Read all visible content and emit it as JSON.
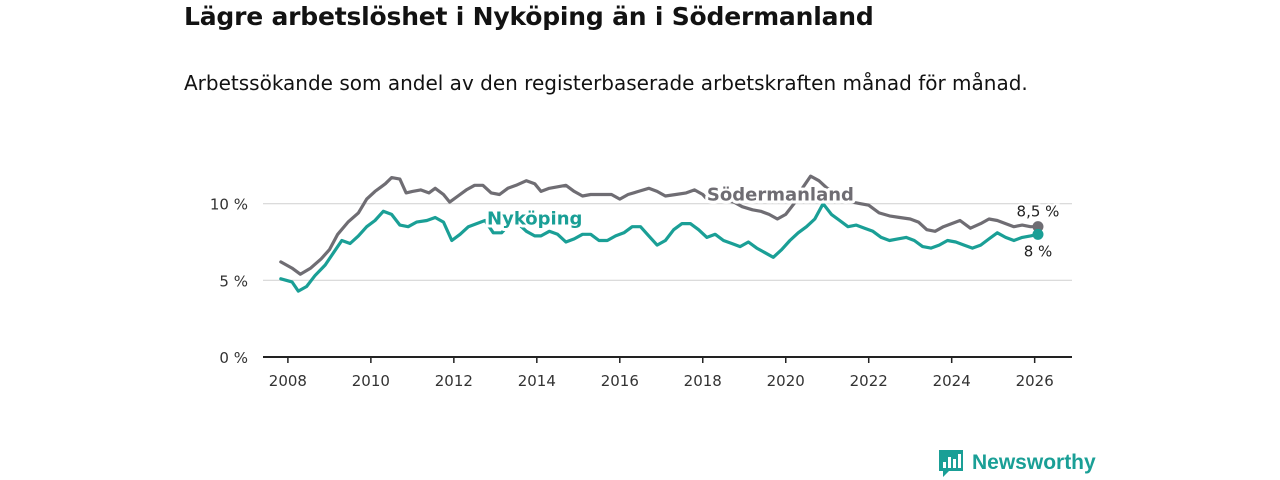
{
  "title": "Lägre arbetslöshet i Nyköping än i Södermanland",
  "subtitle": "Arbetssökande som andel av den registerbaserade arbetskraften månad för månad.",
  "brand": {
    "name": "Newsworthy",
    "icon": "bar-chart-speech-bubble-icon",
    "color": "#1a9f96"
  },
  "chart_data": {
    "type": "line",
    "x_range": [
      2007.4,
      2026.9
    ],
    "ylim": [
      0,
      13.5
    ],
    "x_ticks": [
      2008,
      2010,
      2012,
      2014,
      2016,
      2018,
      2020,
      2022,
      2024,
      2026
    ],
    "x_tick_labels": [
      "2008",
      "2010",
      "2012",
      "2014",
      "2016",
      "2018",
      "2020",
      "2022",
      "2024",
      "2026"
    ],
    "y_ticks": [
      0,
      5,
      10
    ],
    "y_tick_labels": [
      "0 %",
      "5 %",
      "10 %"
    ],
    "grid": true,
    "series": [
      {
        "name": "Södermanland",
        "color": "#6f6d73",
        "label_at": [
          2018.1,
          10.2
        ],
        "end_label": "8,5 %",
        "points": [
          [
            2007.83,
            6.2
          ],
          [
            2008.1,
            5.8
          ],
          [
            2008.3,
            5.4
          ],
          [
            2008.55,
            5.8
          ],
          [
            2008.8,
            6.4
          ],
          [
            2009.0,
            7.0
          ],
          [
            2009.2,
            8.0
          ],
          [
            2009.45,
            8.8
          ],
          [
            2009.7,
            9.4
          ],
          [
            2009.9,
            10.3
          ],
          [
            2010.1,
            10.8
          ],
          [
            2010.35,
            11.3
          ],
          [
            2010.5,
            11.7
          ],
          [
            2010.7,
            11.6
          ],
          [
            2010.85,
            10.7
          ],
          [
            2011.0,
            10.8
          ],
          [
            2011.2,
            10.9
          ],
          [
            2011.4,
            10.7
          ],
          [
            2011.55,
            11.0
          ],
          [
            2011.75,
            10.6
          ],
          [
            2011.9,
            10.1
          ],
          [
            2012.1,
            10.5
          ],
          [
            2012.3,
            10.9
          ],
          [
            2012.5,
            11.2
          ],
          [
            2012.7,
            11.2
          ],
          [
            2012.9,
            10.7
          ],
          [
            2013.1,
            10.6
          ],
          [
            2013.3,
            11.0
          ],
          [
            2013.5,
            11.2
          ],
          [
            2013.75,
            11.5
          ],
          [
            2013.95,
            11.3
          ],
          [
            2014.1,
            10.8
          ],
          [
            2014.3,
            11.0
          ],
          [
            2014.5,
            11.1
          ],
          [
            2014.7,
            11.2
          ],
          [
            2014.9,
            10.8
          ],
          [
            2015.1,
            10.5
          ],
          [
            2015.3,
            10.6
          ],
          [
            2015.55,
            10.6
          ],
          [
            2015.8,
            10.6
          ],
          [
            2016.0,
            10.3
          ],
          [
            2016.2,
            10.6
          ],
          [
            2016.45,
            10.8
          ],
          [
            2016.7,
            11.0
          ],
          [
            2016.9,
            10.8
          ],
          [
            2017.1,
            10.5
          ],
          [
            2017.35,
            10.6
          ],
          [
            2017.6,
            10.7
          ],
          [
            2017.8,
            10.9
          ],
          [
            2018.0,
            10.6
          ],
          [
            2018.1,
            10.3
          ],
          [
            2018.35,
            10.3
          ],
          [
            2018.55,
            10.2
          ],
          [
            2018.75,
            10.1
          ],
          [
            2018.95,
            9.8
          ],
          [
            2019.2,
            9.6
          ],
          [
            2019.4,
            9.5
          ],
          [
            2019.6,
            9.3
          ],
          [
            2019.8,
            9.0
          ],
          [
            2020.0,
            9.3
          ],
          [
            2020.2,
            10.0
          ],
          [
            2020.4,
            11.0
          ],
          [
            2020.6,
            11.8
          ],
          [
            2020.8,
            11.5
          ],
          [
            2021.0,
            11.0
          ],
          [
            2021.2,
            10.8
          ],
          [
            2021.4,
            10.3
          ],
          [
            2021.6,
            10.1
          ],
          [
            2021.8,
            10.0
          ],
          [
            2022.0,
            9.9
          ],
          [
            2022.25,
            9.4
          ],
          [
            2022.5,
            9.2
          ],
          [
            2022.75,
            9.1
          ],
          [
            2023.0,
            9.0
          ],
          [
            2023.2,
            8.8
          ],
          [
            2023.4,
            8.3
          ],
          [
            2023.6,
            8.2
          ],
          [
            2023.8,
            8.5
          ],
          [
            2024.0,
            8.7
          ],
          [
            2024.2,
            8.9
          ],
          [
            2024.45,
            8.4
          ],
          [
            2024.7,
            8.7
          ],
          [
            2024.9,
            9.0
          ],
          [
            2025.1,
            8.9
          ],
          [
            2025.3,
            8.7
          ],
          [
            2025.5,
            8.5
          ],
          [
            2025.7,
            8.6
          ],
          [
            2025.9,
            8.5
          ],
          [
            2026.08,
            8.5
          ]
        ]
      },
      {
        "name": "Nyköping",
        "color": "#1a9f96",
        "label_at": [
          2012.8,
          8.65
        ],
        "end_label": "8 %",
        "points": [
          [
            2007.83,
            5.1
          ],
          [
            2008.1,
            4.9
          ],
          [
            2008.25,
            4.3
          ],
          [
            2008.45,
            4.6
          ],
          [
            2008.65,
            5.3
          ],
          [
            2008.9,
            6.0
          ],
          [
            2009.1,
            6.8
          ],
          [
            2009.3,
            7.6
          ],
          [
            2009.5,
            7.4
          ],
          [
            2009.7,
            7.9
          ],
          [
            2009.9,
            8.5
          ],
          [
            2010.1,
            8.9
          ],
          [
            2010.3,
            9.5
          ],
          [
            2010.5,
            9.3
          ],
          [
            2010.7,
            8.6
          ],
          [
            2010.9,
            8.5
          ],
          [
            2011.1,
            8.8
          ],
          [
            2011.35,
            8.9
          ],
          [
            2011.55,
            9.1
          ],
          [
            2011.75,
            8.8
          ],
          [
            2011.95,
            7.6
          ],
          [
            2012.15,
            8.0
          ],
          [
            2012.35,
            8.5
          ],
          [
            2012.55,
            8.7
          ],
          [
            2012.75,
            8.9
          ],
          [
            2012.95,
            8.1
          ],
          [
            2013.15,
            8.1
          ],
          [
            2013.35,
            8.7
          ],
          [
            2013.55,
            8.7
          ],
          [
            2013.75,
            8.2
          ],
          [
            2013.95,
            7.9
          ],
          [
            2014.1,
            7.9
          ],
          [
            2014.3,
            8.2
          ],
          [
            2014.5,
            8.0
          ],
          [
            2014.7,
            7.5
          ],
          [
            2014.9,
            7.7
          ],
          [
            2015.1,
            8.0
          ],
          [
            2015.3,
            8.0
          ],
          [
            2015.5,
            7.6
          ],
          [
            2015.7,
            7.6
          ],
          [
            2015.9,
            7.9
          ],
          [
            2016.1,
            8.1
          ],
          [
            2016.3,
            8.5
          ],
          [
            2016.5,
            8.5
          ],
          [
            2016.7,
            7.9
          ],
          [
            2016.9,
            7.3
          ],
          [
            2017.1,
            7.6
          ],
          [
            2017.3,
            8.3
          ],
          [
            2017.5,
            8.7
          ],
          [
            2017.7,
            8.7
          ],
          [
            2017.9,
            8.3
          ],
          [
            2018.1,
            7.8
          ],
          [
            2018.3,
            8.0
          ],
          [
            2018.5,
            7.6
          ],
          [
            2018.7,
            7.4
          ],
          [
            2018.9,
            7.2
          ],
          [
            2019.1,
            7.5
          ],
          [
            2019.3,
            7.1
          ],
          [
            2019.5,
            6.8
          ],
          [
            2019.7,
            6.5
          ],
          [
            2019.9,
            7.0
          ],
          [
            2020.1,
            7.6
          ],
          [
            2020.3,
            8.1
          ],
          [
            2020.5,
            8.5
          ],
          [
            2020.7,
            9.0
          ],
          [
            2020.9,
            10.0
          ],
          [
            2021.1,
            9.3
          ],
          [
            2021.3,
            8.9
          ],
          [
            2021.5,
            8.5
          ],
          [
            2021.7,
            8.6
          ],
          [
            2021.9,
            8.4
          ],
          [
            2022.1,
            8.2
          ],
          [
            2022.3,
            7.8
          ],
          [
            2022.5,
            7.6
          ],
          [
            2022.7,
            7.7
          ],
          [
            2022.9,
            7.8
          ],
          [
            2023.1,
            7.6
          ],
          [
            2023.3,
            7.2
          ],
          [
            2023.5,
            7.1
          ],
          [
            2023.7,
            7.3
          ],
          [
            2023.9,
            7.6
          ],
          [
            2024.1,
            7.5
          ],
          [
            2024.3,
            7.3
          ],
          [
            2024.5,
            7.1
          ],
          [
            2024.7,
            7.3
          ],
          [
            2024.9,
            7.7
          ],
          [
            2025.1,
            8.1
          ],
          [
            2025.3,
            7.8
          ],
          [
            2025.5,
            7.6
          ],
          [
            2025.7,
            7.8
          ],
          [
            2025.9,
            7.9
          ],
          [
            2026.08,
            8.0
          ]
        ]
      }
    ]
  }
}
